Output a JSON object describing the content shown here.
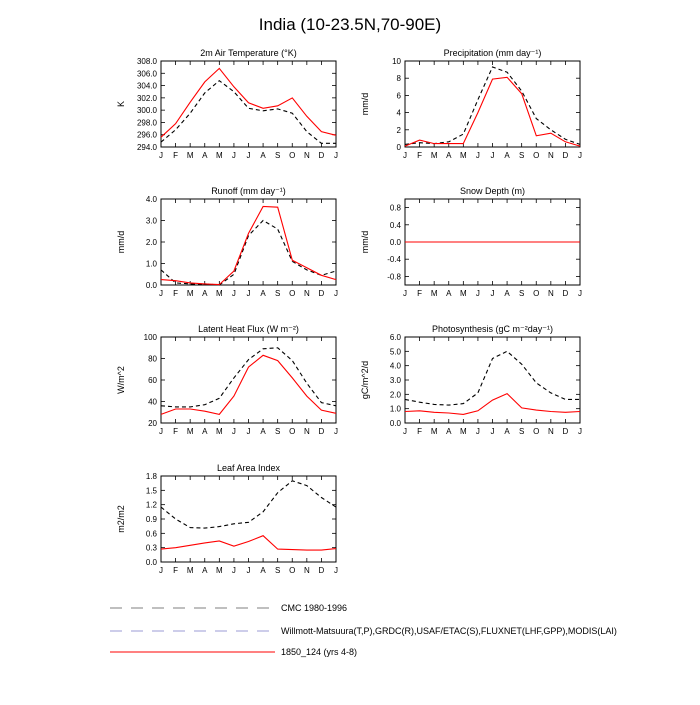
{
  "figure_title": "India (10-23.5N,70-90E)",
  "months": [
    "J",
    "F",
    "M",
    "A",
    "M",
    "J",
    "J",
    "A",
    "S",
    "O",
    "N",
    "D",
    "J"
  ],
  "colors": {
    "model": "#ff0000",
    "obs": "#000000",
    "cmc": "#7f7f7f",
    "willmott": "#9b9bd6"
  },
  "legend": [
    {
      "key": "cmc",
      "label": "CMC 1980-1996"
    },
    {
      "key": "willmott",
      "label": "Willmott-Matsuura(T,P),GRDC(R),USAF/ETAC(S),FLUXNET(LHF,GPP),MODIS(LAI)"
    },
    {
      "key": "model",
      "label": "1850_124 (yrs 4-8)"
    }
  ],
  "chart_data": [
    {
      "type": "line",
      "title": "2m Air Temperature (°K)",
      "ylabel": "K",
      "ylim": [
        294,
        308
      ],
      "yticks": [
        294,
        296,
        298,
        300,
        302,
        304,
        306,
        308
      ],
      "ytick_labels": [
        "294.0",
        "296.0",
        "298.0",
        "300.0",
        "302.0",
        "304.0",
        "306.0",
        "308.0"
      ],
      "series": [
        {
          "name": "obs",
          "values": [
            294.8,
            296.8,
            299.5,
            302.8,
            304.8,
            303.0,
            300.3,
            299.9,
            300.2,
            299.5,
            296.5,
            294.6,
            294.6
          ]
        },
        {
          "name": "model",
          "values": [
            295.6,
            297.8,
            301.3,
            304.6,
            306.8,
            303.8,
            301.2,
            300.3,
            300.7,
            302.0,
            299.0,
            296.5,
            295.9
          ]
        }
      ]
    },
    {
      "type": "line",
      "title": "Precipitation (mm day⁻¹)",
      "ylabel": "mm/d",
      "ylim": [
        0,
        10
      ],
      "yticks": [
        0,
        2,
        4,
        6,
        8,
        10
      ],
      "ytick_labels": [
        "0",
        "2",
        "4",
        "6",
        "8",
        "10"
      ],
      "series": [
        {
          "name": "obs",
          "values": [
            0.3,
            0.5,
            0.4,
            0.6,
            1.5,
            5.5,
            9.3,
            8.7,
            6.5,
            3.3,
            2.0,
            0.9,
            0.3
          ]
        },
        {
          "name": "model",
          "values": [
            0.1,
            0.8,
            0.4,
            0.4,
            0.4,
            4.0,
            7.9,
            8.1,
            6.2,
            1.3,
            1.6,
            0.6,
            0.1
          ]
        }
      ]
    },
    {
      "type": "line",
      "title": "Runoff (mm day⁻¹)",
      "ylabel": "mm/d",
      "ylim": [
        0,
        4
      ],
      "yticks": [
        0,
        1,
        2,
        3,
        4
      ],
      "ytick_labels": [
        "0.0",
        "1.0",
        "2.0",
        "3.0",
        "4.0"
      ],
      "series": [
        {
          "name": "obs",
          "values": [
            0.7,
            0.1,
            0.05,
            0.05,
            0.0,
            0.5,
            2.3,
            3.0,
            2.6,
            1.1,
            0.7,
            0.45,
            0.65
          ]
        },
        {
          "name": "model",
          "values": [
            0.25,
            0.2,
            0.1,
            0.05,
            0.02,
            0.65,
            2.4,
            3.65,
            3.62,
            1.15,
            0.8,
            0.45,
            0.25
          ]
        }
      ]
    },
    {
      "type": "line",
      "title": "Snow Depth (m)",
      "ylabel": "mm/d",
      "ylim": [
        -1,
        1
      ],
      "yticks": [
        -0.8,
        -0.4,
        0,
        0.4,
        0.8
      ],
      "ytick_labels": [
        "-0.8",
        "-0.4",
        "0.0",
        "0.4",
        "0.8"
      ],
      "series": [
        {
          "name": "obs",
          "values": [
            0,
            0,
            0,
            0,
            0,
            0,
            0,
            0,
            0,
            0,
            0,
            0,
            0
          ]
        },
        {
          "name": "model",
          "values": [
            0,
            0,
            0,
            0,
            0,
            0,
            0,
            0,
            0,
            0,
            0,
            0,
            0
          ]
        }
      ]
    },
    {
      "type": "line",
      "title": "Latent Heat Flux (W m⁻²)",
      "ylabel": "W/m^2",
      "ylim": [
        20,
        100
      ],
      "yticks": [
        20,
        40,
        60,
        80,
        100
      ],
      "ytick_labels": [
        "20",
        "40",
        "60",
        "80",
        "100"
      ],
      "series": [
        {
          "name": "obs",
          "values": [
            36,
            35,
            35,
            37,
            43,
            62,
            79,
            89,
            90,
            78,
            57,
            39,
            36
          ]
        },
        {
          "name": "model",
          "values": [
            28,
            33,
            33,
            31,
            28,
            45,
            72,
            83,
            78,
            62,
            45,
            32,
            29
          ]
        }
      ]
    },
    {
      "type": "line",
      "title": "Photosynthesis (gC m⁻²day⁻¹)",
      "ylabel": "gC/m^2/d",
      "ylim": [
        0,
        6
      ],
      "yticks": [
        0,
        1,
        2,
        3,
        4,
        5,
        6
      ],
      "ytick_labels": [
        "0.0",
        "1.0",
        "2.0",
        "3.0",
        "4.0",
        "5.0",
        "6.0"
      ],
      "series": [
        {
          "name": "obs",
          "values": [
            1.65,
            1.45,
            1.3,
            1.25,
            1.35,
            2.1,
            4.5,
            5.0,
            4.1,
            2.8,
            2.1,
            1.65,
            1.65
          ]
        },
        {
          "name": "model",
          "values": [
            0.8,
            0.85,
            0.75,
            0.7,
            0.6,
            0.85,
            1.6,
            2.05,
            1.05,
            0.9,
            0.8,
            0.75,
            0.8
          ]
        }
      ]
    },
    {
      "type": "line",
      "title": "Leaf Area Index",
      "ylabel": "m2/m2",
      "ylim": [
        0,
        1.8
      ],
      "yticks": [
        0,
        0.3,
        0.6,
        0.9,
        1.2,
        1.5,
        1.8
      ],
      "ytick_labels": [
        "0.0",
        "0.3",
        "0.6",
        "0.9",
        "1.2",
        "1.5",
        "1.8"
      ],
      "series": [
        {
          "name": "obs",
          "values": [
            1.15,
            0.9,
            0.72,
            0.71,
            0.74,
            0.8,
            0.83,
            1.05,
            1.45,
            1.7,
            1.6,
            1.35,
            1.15
          ]
        },
        {
          "name": "model",
          "values": [
            0.27,
            0.3,
            0.35,
            0.4,
            0.44,
            0.33,
            0.43,
            0.55,
            0.27,
            0.26,
            0.25,
            0.25,
            0.28
          ]
        }
      ]
    }
  ]
}
